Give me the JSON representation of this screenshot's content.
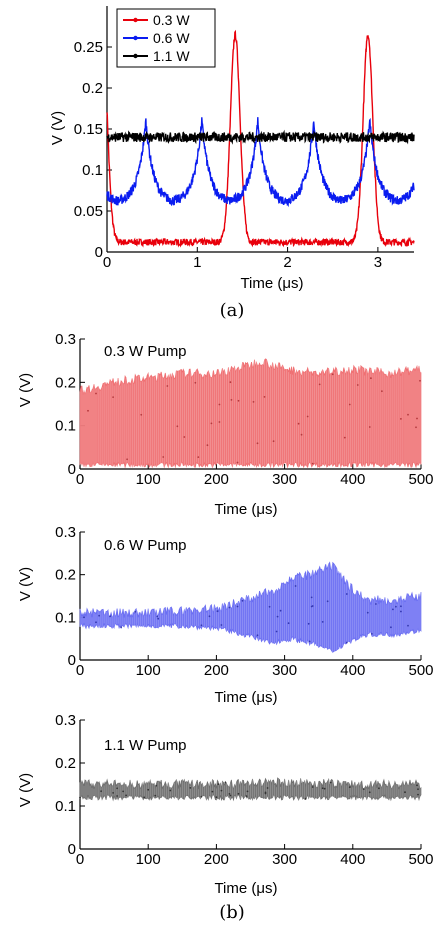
{
  "chart_data": [
    {
      "type": "line",
      "xlabel": "Time (μs)",
      "ylabel": "V (V)",
      "xlim": [
        0,
        3.4
      ],
      "ylim": [
        0,
        0.3
      ],
      "x_ticks": [
        0,
        1,
        2,
        3
      ],
      "y_ticks": [
        0,
        0.05,
        0.1,
        0.15,
        0.2,
        0.25
      ],
      "y_tick_labels": [
        "0",
        "0.05",
        "0.1",
        "0.15",
        "0.2",
        "0.25"
      ],
      "legend": {
        "placement": "top-left",
        "entries": [
          "0.3 W",
          "0.6 W",
          "1.1 W"
        ]
      },
      "caption": "(a)",
      "series": [
        {
          "name": "0.3 W",
          "color": "#e8000b",
          "period": 1.47,
          "first_peak": 1.42,
          "peak": 0.265,
          "baseline": 0.012
        },
        {
          "name": "0.6 W",
          "color": "#0a1cf0",
          "period": 0.62,
          "first_peak": 0.43,
          "peak": 0.16,
          "trough": 0.06
        },
        {
          "name": "1.1 W",
          "color": "#000000",
          "mean": 0.14,
          "noise": 0.006
        }
      ]
    },
    {
      "type": "area",
      "annotation": "0.3 W Pump",
      "xlabel": "Time (μs)",
      "ylabel": "V (V)",
      "xlim": [
        0,
        500
      ],
      "ylim": [
        0,
        0.3
      ],
      "x_ticks": [
        0,
        100,
        200,
        300,
        400,
        500
      ],
      "y_ticks": [
        0,
        0.1,
        0.2,
        0.3
      ],
      "y_tick_labels": [
        "0",
        "0.1",
        "0.2",
        "0.3"
      ],
      "color": "#ef6f72",
      "envelope": {
        "t": [
          0,
          50,
          100,
          150,
          200,
          250,
          265,
          300,
          350,
          400,
          450,
          500
        ],
        "lower": [
          0.01,
          0.01,
          0.01,
          0.01,
          0.01,
          0.01,
          0.01,
          0.01,
          0.01,
          0.01,
          0.01,
          0.01
        ],
        "upper": [
          0.18,
          0.2,
          0.21,
          0.22,
          0.22,
          0.24,
          0.25,
          0.23,
          0.22,
          0.23,
          0.22,
          0.23
        ]
      }
    },
    {
      "type": "area",
      "annotation": "0.6 W Pump",
      "xlabel": "Time (μs)",
      "ylabel": "V (V)",
      "xlim": [
        0,
        500
      ],
      "ylim": [
        0,
        0.3
      ],
      "x_ticks": [
        0,
        100,
        200,
        300,
        400,
        500
      ],
      "y_ticks": [
        0,
        0.1,
        0.2,
        0.3
      ],
      "y_tick_labels": [
        "0",
        "0.1",
        "0.2",
        "0.3"
      ],
      "color": "#6a6ef2",
      "envelope": {
        "t": [
          0,
          50,
          100,
          150,
          200,
          240,
          280,
          310,
          340,
          370,
          390,
          420,
          460,
          500
        ],
        "lower": [
          0.08,
          0.08,
          0.08,
          0.08,
          0.075,
          0.06,
          0.04,
          0.05,
          0.04,
          0.02,
          0.04,
          0.06,
          0.06,
          0.07
        ],
        "upper": [
          0.11,
          0.11,
          0.11,
          0.115,
          0.12,
          0.14,
          0.16,
          0.19,
          0.2,
          0.22,
          0.18,
          0.14,
          0.14,
          0.15
        ]
      }
    },
    {
      "type": "area",
      "annotation": "1.1 W Pump",
      "xlabel": "Time (μs)",
      "ylabel": "V (V)",
      "xlim": [
        0,
        500
      ],
      "ylim": [
        0,
        0.3
      ],
      "x_ticks": [
        0,
        100,
        200,
        300,
        400,
        500
      ],
      "y_ticks": [
        0,
        0.1,
        0.2,
        0.3
      ],
      "y_tick_labels": [
        "0",
        "0.1",
        "0.2",
        "0.3"
      ],
      "color": "#6e6e6e",
      "envelope": {
        "t": [
          0,
          100,
          200,
          300,
          400,
          500
        ],
        "lower": [
          0.12,
          0.12,
          0.12,
          0.12,
          0.12,
          0.12
        ],
        "upper": [
          0.15,
          0.15,
          0.15,
          0.155,
          0.15,
          0.15
        ]
      }
    }
  ],
  "caption_b": "(b)"
}
